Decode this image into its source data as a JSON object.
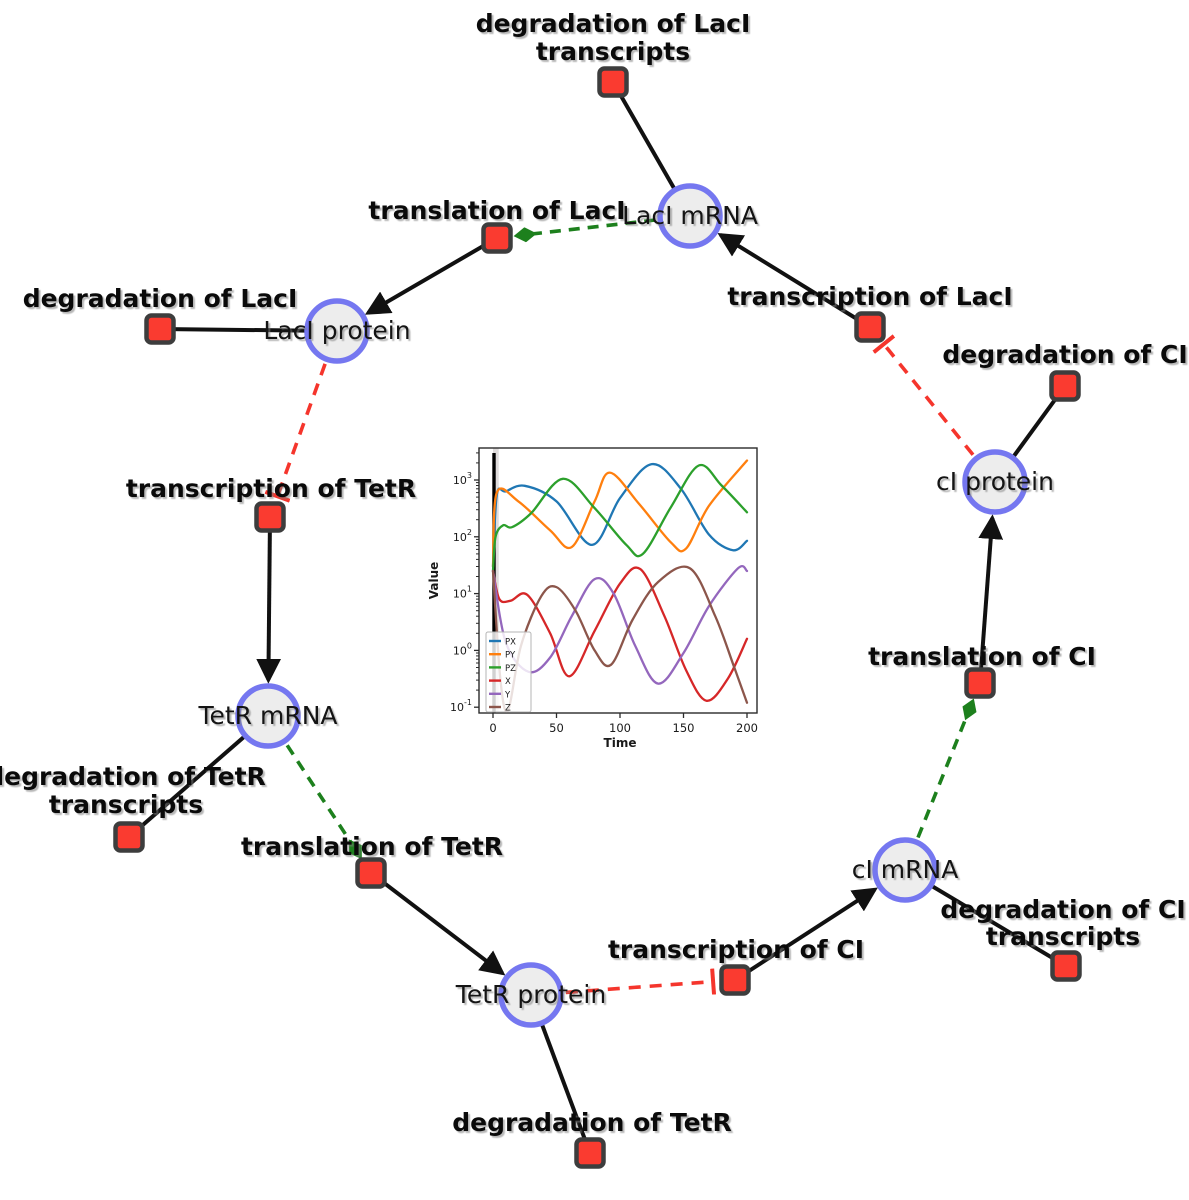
{
  "diagram": {
    "species": [
      {
        "id": "laci-mrna",
        "label": "LacI mRNA"
      },
      {
        "id": "laci-protein",
        "label": "LacI protein"
      },
      {
        "id": "ci-protein",
        "label": "cI protein"
      },
      {
        "id": "tetr-mrna",
        "label": "TetR mRNA"
      },
      {
        "id": "tetr-protein",
        "label": "TetR protein"
      },
      {
        "id": "ci-mrna",
        "label": "cI mRNA"
      }
    ],
    "reactions": [
      {
        "id": "degradation-of-laci-transcripts",
        "lines": [
          "degradation of LacI",
          "transcripts"
        ]
      },
      {
        "id": "translation-of-laci",
        "lines": [
          "translation of LacI"
        ]
      },
      {
        "id": "transcription-of-laci",
        "lines": [
          "transcription of LacI"
        ]
      },
      {
        "id": "degradation-of-laci",
        "lines": [
          "degradation of LacI"
        ]
      },
      {
        "id": "degradation-of-ci",
        "lines": [
          "degradation of CI"
        ]
      },
      {
        "id": "transcription-of-tetr",
        "lines": [
          "transcription of TetR"
        ]
      },
      {
        "id": "degradation-of-tetr-transcripts",
        "lines": [
          "degradation of TetR",
          "transcripts"
        ]
      },
      {
        "id": "translation-of-tetr",
        "lines": [
          "translation of TetR"
        ]
      },
      {
        "id": "degradation-of-tetr",
        "lines": [
          "degradation of TetR"
        ]
      },
      {
        "id": "transcription-of-ci",
        "lines": [
          "transcription of CI"
        ]
      },
      {
        "id": "degradation-of-ci-transcripts",
        "lines": [
          "degradation of CI",
          "transcripts"
        ]
      },
      {
        "id": "translation-of-ci",
        "lines": [
          "translation of CI"
        ]
      }
    ],
    "edges": [
      {
        "from": "laci-mrna",
        "to": "degradation-of-laci-transcripts",
        "type": "reactant"
      },
      {
        "from": "transcription-of-laci",
        "to": "laci-mrna",
        "type": "product"
      },
      {
        "from": "laci-mrna",
        "to": "translation-of-laci",
        "type": "modifier"
      },
      {
        "from": "translation-of-laci",
        "to": "laci-protein",
        "type": "product"
      },
      {
        "from": "laci-protein",
        "to": "degradation-of-laci",
        "type": "reactant"
      },
      {
        "from": "laci-protein",
        "to": "transcription-of-tetr",
        "type": "inhibition"
      },
      {
        "from": "transcription-of-tetr",
        "to": "tetr-mrna",
        "type": "product"
      },
      {
        "from": "tetr-mrna",
        "to": "degradation-of-tetr-transcripts",
        "type": "reactant"
      },
      {
        "from": "tetr-mrna",
        "to": "translation-of-tetr",
        "type": "modifier"
      },
      {
        "from": "translation-of-tetr",
        "to": "tetr-protein",
        "type": "product"
      },
      {
        "from": "tetr-protein",
        "to": "degradation-of-tetr",
        "type": "reactant"
      },
      {
        "from": "tetr-protein",
        "to": "transcription-of-ci",
        "type": "inhibition"
      },
      {
        "from": "transcription-of-ci",
        "to": "ci-mrna",
        "type": "product"
      },
      {
        "from": "ci-mrna",
        "to": "degradation-of-ci-transcripts",
        "type": "reactant"
      },
      {
        "from": "ci-mrna",
        "to": "translation-of-ci",
        "type": "modifier"
      },
      {
        "from": "translation-of-ci",
        "to": "ci-protein",
        "type": "product"
      },
      {
        "from": "ci-protein",
        "to": "degradation-of-ci",
        "type": "reactant"
      },
      {
        "from": "ci-protein",
        "to": "transcription-of-laci",
        "type": "inhibition"
      }
    ],
    "palette": {
      "background": "#ffffff",
      "species_fill": "#ededed",
      "species_stroke": "#7577f0",
      "reaction_fill": "#fa3b30",
      "reaction_stroke": "#3d3d3d",
      "edge_black": "#111111",
      "modifier_green": "#1d801d",
      "inhibition_red": "#f5352c"
    }
  },
  "chart_data": {
    "type": "line",
    "title": "",
    "xlabel": "Time",
    "ylabel": "Value",
    "y_scale": "log",
    "x_ticks": [
      0,
      50,
      100,
      150,
      200
    ],
    "y_tick_exponents": [
      -1,
      0,
      1,
      2,
      3
    ],
    "xlim": [
      -11,
      208
    ],
    "ylim_log": [
      -1.07,
      3.56
    ],
    "grid": false,
    "legend_position": "lower left",
    "vline_x": 0,
    "vspan": [
      0,
      4.5
    ],
    "series": [
      {
        "name": "PX",
        "color": "#1f77b4",
        "points": [
          [
            0,
            30
          ],
          [
            3,
            550
          ],
          [
            10,
            630
          ],
          [
            25,
            790
          ],
          [
            50,
            420
          ],
          [
            78,
            72
          ],
          [
            100,
            480
          ],
          [
            125,
            1900
          ],
          [
            148,
            700
          ],
          [
            170,
            110
          ],
          [
            189,
            58
          ],
          [
            200,
            85
          ]
        ]
      },
      {
        "name": "PY",
        "color": "#ff7f0e",
        "points": [
          [
            0,
            30
          ],
          [
            3,
            600
          ],
          [
            20,
            420
          ],
          [
            45,
            130
          ],
          [
            62,
            66
          ],
          [
            80,
            420
          ],
          [
            92,
            1350
          ],
          [
            115,
            380
          ],
          [
            140,
            80
          ],
          [
            152,
            62
          ],
          [
            170,
            350
          ],
          [
            200,
            2200
          ]
        ]
      },
      {
        "name": "PZ",
        "color": "#2ca02c",
        "points": [
          [
            0,
            25
          ],
          [
            2,
            100
          ],
          [
            8,
            160
          ],
          [
            15,
            148
          ],
          [
            30,
            260
          ],
          [
            55,
            1050
          ],
          [
            80,
            320
          ],
          [
            105,
            72
          ],
          [
            118,
            50
          ],
          [
            140,
            330
          ],
          [
            162,
            1800
          ],
          [
            180,
            800
          ],
          [
            200,
            270
          ]
        ]
      },
      {
        "name": "X",
        "color": "#d62728",
        "points": [
          [
            0,
            25
          ],
          [
            5,
            8
          ],
          [
            14,
            7.5
          ],
          [
            27,
            9.5
          ],
          [
            45,
            2
          ],
          [
            60,
            0.35
          ],
          [
            80,
            2.2
          ],
          [
            100,
            15
          ],
          [
            116,
            27
          ],
          [
            135,
            4
          ],
          [
            152,
            0.45
          ],
          [
            168,
            0.13
          ],
          [
            185,
            0.32
          ],
          [
            200,
            1.6
          ]
        ]
      },
      {
        "name": "Y",
        "color": "#9467bd",
        "points": [
          [
            0,
            25
          ],
          [
            10,
            1.4
          ],
          [
            28,
            0.42
          ],
          [
            45,
            0.75
          ],
          [
            62,
            4
          ],
          [
            80,
            18
          ],
          [
            95,
            10
          ],
          [
            112,
            1.2
          ],
          [
            130,
            0.26
          ],
          [
            150,
            0.9
          ],
          [
            170,
            6
          ],
          [
            193,
            28
          ],
          [
            200,
            25
          ]
        ]
      },
      {
        "name": "Z",
        "color": "#8c564b",
        "points": [
          [
            0,
            25
          ],
          [
            6,
            0.28
          ],
          [
            12,
            0.09
          ],
          [
            22,
            1.2
          ],
          [
            38,
            9
          ],
          [
            50,
            13
          ],
          [
            65,
            5
          ],
          [
            80,
            1
          ],
          [
            93,
            0.56
          ],
          [
            110,
            3.5
          ],
          [
            130,
            16
          ],
          [
            155,
            28
          ],
          [
            175,
            4
          ],
          [
            190,
            0.5
          ],
          [
            200,
            0.12
          ]
        ]
      }
    ]
  }
}
